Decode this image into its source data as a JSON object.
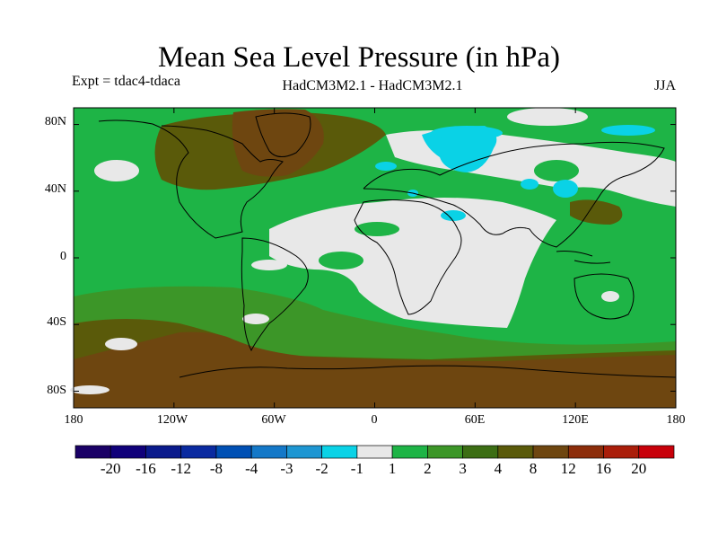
{
  "header": {
    "title": "Mean Sea Level Pressure (in hPa)",
    "experiment": "Expt = tdac4-tdaca",
    "models": "HadCM3M2.1 - HadCM3M2.1",
    "season": "JJA"
  },
  "map": {
    "lon_range": [
      -180,
      180
    ],
    "lat_range": [
      -90,
      90
    ],
    "y_ticks": [
      {
        "lat": 80,
        "label": "80N"
      },
      {
        "lat": 40,
        "label": "40N"
      },
      {
        "lat": 0,
        "label": "0"
      },
      {
        "lat": -40,
        "label": "40S"
      },
      {
        "lat": -80,
        "label": "80S"
      }
    ],
    "x_ticks": [
      {
        "lon": -180,
        "label": "180"
      },
      {
        "lon": -120,
        "label": "120W"
      },
      {
        "lon": -60,
        "label": "60W"
      },
      {
        "lon": 0,
        "label": "0"
      },
      {
        "lon": 60,
        "label": "60E"
      },
      {
        "lon": 120,
        "label": "120E"
      },
      {
        "lon": 180,
        "label": "180"
      }
    ]
  },
  "colorbar": {
    "colors": [
      "#1a0066",
      "#10007a",
      "#0a1a8c",
      "#0a2aa0",
      "#0050b4",
      "#1478c8",
      "#1e96d2",
      "#0ad2e6",
      "#e8e8e8",
      "#1eb446",
      "#3c9628",
      "#3c6e14",
      "#5a5a0a",
      "#6e4610",
      "#8c2d0a",
      "#aa1e0a",
      "#c8000a"
    ],
    "labels": [
      "-20",
      "-16",
      "-12",
      "-8",
      "-4",
      "-3",
      "-2",
      "-1",
      "1",
      "2",
      "3",
      "4",
      "8",
      "12",
      "16",
      "20"
    ]
  },
  "field_colors": {
    "green": "#1eb446",
    "green2": "#3c9628",
    "olive": "#5a5a0a",
    "brown": "#6e4610",
    "light": "#e8e8e8",
    "cyan": "#0ad2e6"
  }
}
